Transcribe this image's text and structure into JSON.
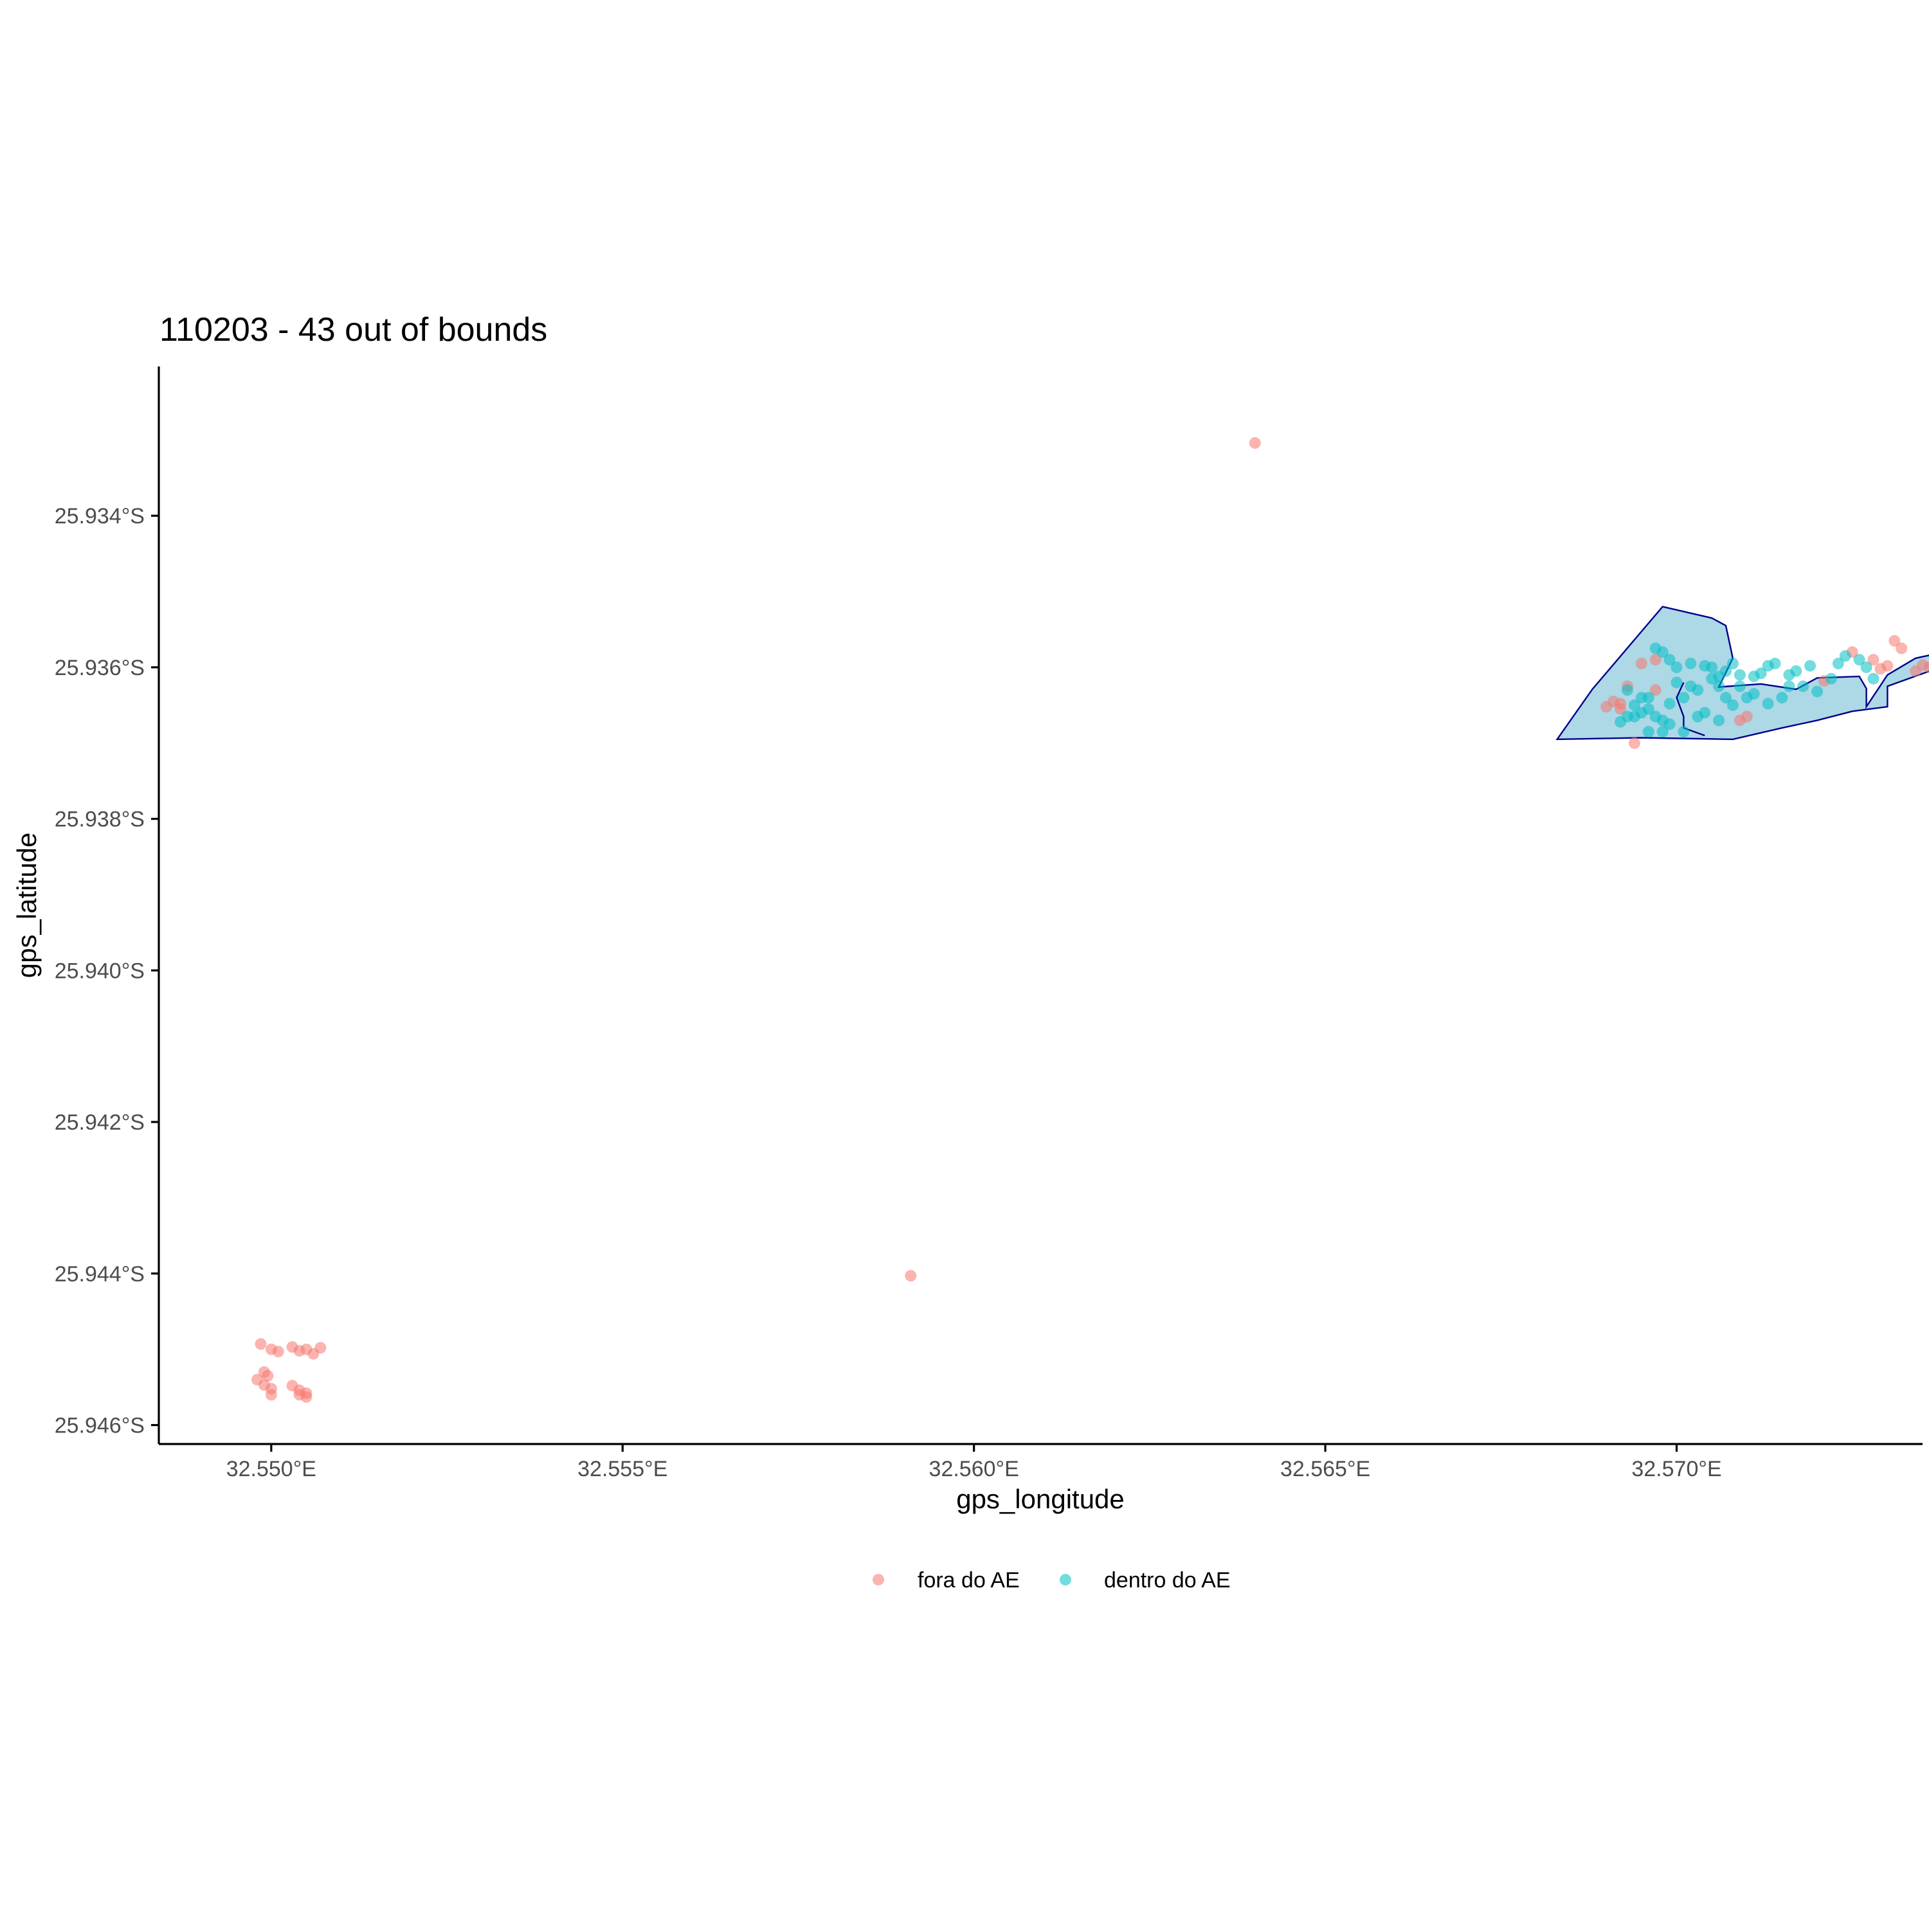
{
  "chart_data": {
    "type": "scatter",
    "title": "110203 - 43 out of bounds",
    "xlabel": "gps_longitude",
    "ylabel": "gps_latitude",
    "xlim": [
      32.5484,
      32.5735
    ],
    "ylim": [
      -25.94625,
      -25.93203
    ],
    "x_ticks": [
      {
        "value": 32.55,
        "label": "32.550°E"
      },
      {
        "value": 32.555,
        "label": "32.555°E"
      },
      {
        "value": 32.56,
        "label": "32.560°E"
      },
      {
        "value": 32.565,
        "label": "32.565°E"
      },
      {
        "value": 32.57,
        "label": "32.570°E"
      }
    ],
    "y_ticks": [
      {
        "value": -25.934,
        "label": "25.934°S"
      },
      {
        "value": -25.936,
        "label": "25.936°S"
      },
      {
        "value": -25.938,
        "label": "25.938°S"
      },
      {
        "value": -25.94,
        "label": "25.940°S"
      },
      {
        "value": -25.942,
        "label": "25.942°S"
      },
      {
        "value": -25.944,
        "label": "25.944°S"
      },
      {
        "value": -25.946,
        "label": "25.946°S"
      }
    ],
    "grid": false,
    "legend_position": "bottom",
    "polygon": {
      "fill": "#add8e6",
      "stroke": "#00008b",
      "outer": [
        [
          32.5683,
          -25.93695
        ],
        [
          32.5688,
          -25.93629
        ],
        [
          32.5698,
          -25.9352
        ],
        [
          32.5705,
          -25.93535
        ],
        [
          32.5707,
          -25.93545
        ],
        [
          32.5708,
          -25.93588
        ],
        [
          32.5706,
          -25.93626
        ],
        [
          32.5712,
          -25.93622
        ],
        [
          32.5717,
          -25.93629
        ],
        [
          32.572,
          -25.93614
        ],
        [
          32.5726,
          -25.93612
        ],
        [
          32.5727,
          -25.93628
        ],
        [
          32.5727,
          -25.93652
        ],
        [
          32.573,
          -25.9361
        ],
        [
          32.5734,
          -25.93588
        ],
        [
          32.5742,
          -25.93572
        ],
        [
          32.5743,
          -25.9358
        ],
        [
          32.5736,
          -25.93605
        ],
        [
          32.573,
          -25.93625
        ],
        [
          32.573,
          -25.93652
        ],
        [
          32.5725,
          -25.93658
        ],
        [
          32.572,
          -25.9367
        ],
        [
          32.5715,
          -25.9368
        ],
        [
          32.5708,
          -25.93695
        ],
        [
          32.5695,
          -25.93693
        ]
      ],
      "inner_boundary": [
        [
          32.5701,
          -25.9362
        ],
        [
          32.57,
          -25.9364
        ],
        [
          32.5701,
          -25.93665
        ],
        [
          32.5701,
          -25.9368
        ],
        [
          32.5704,
          -25.9369
        ]
      ]
    },
    "series": [
      {
        "name": "fora do AE",
        "color": "#f8766d",
        "points": [
          [
            32.564,
            -25.93304
          ],
          [
            32.5591,
            -25.94403
          ],
          [
            32.54985,
            -25.94493
          ],
          [
            32.55,
            -25.945
          ],
          [
            32.5501,
            -25.94503
          ],
          [
            32.5503,
            -25.94497
          ],
          [
            32.5504,
            -25.94502
          ],
          [
            32.5505,
            -25.945
          ],
          [
            32.5506,
            -25.94506
          ],
          [
            32.5507,
            -25.94498
          ],
          [
            32.5499,
            -25.9453
          ],
          [
            32.54995,
            -25.94535
          ],
          [
            32.5498,
            -25.9454
          ],
          [
            32.5499,
            -25.94547
          ],
          [
            32.55,
            -25.94552
          ],
          [
            32.55,
            -25.9456
          ],
          [
            32.5503,
            -25.94548
          ],
          [
            32.5504,
            -25.94554
          ],
          [
            32.5504,
            -25.9456
          ],
          [
            32.5505,
            -25.94558
          ],
          [
            32.5505,
            -25.94563
          ],
          [
            32.5695,
            -25.93595
          ],
          [
            32.5693,
            -25.93625
          ],
          [
            32.5691,
            -25.93645
          ],
          [
            32.5692,
            -25.93655
          ],
          [
            32.5694,
            -25.937
          ],
          [
            32.5709,
            -25.9367
          ],
          [
            32.5721,
            -25.93618
          ],
          [
            32.5725,
            -25.9358
          ],
          [
            32.5728,
            -25.9359
          ],
          [
            32.573,
            -25.93598
          ],
          [
            32.5734,
            -25.93605
          ],
          [
            32.5736,
            -25.936
          ],
          [
            32.5737,
            -25.93605
          ],
          [
            32.5731,
            -25.93565
          ],
          [
            32.5732,
            -25.93575
          ],
          [
            32.5697,
            -25.9359
          ],
          [
            32.5697,
            -25.9363
          ],
          [
            32.571,
            -25.93665
          ],
          [
            32.5692,
            -25.93648
          ],
          [
            32.569,
            -25.93652
          ],
          [
            32.5729,
            -25.93602
          ],
          [
            32.5735,
            -25.93597
          ]
        ]
      },
      {
        "name": "dentro do AE",
        "color": "#00bfc4",
        "points": [
          [
            32.5697,
            -25.93575
          ],
          [
            32.5698,
            -25.9358
          ],
          [
            32.5699,
            -25.9359
          ],
          [
            32.57,
            -25.936
          ],
          [
            32.5702,
            -25.93595
          ],
          [
            32.5704,
            -25.93598
          ],
          [
            32.5705,
            -25.936
          ],
          [
            32.5707,
            -25.93605
          ],
          [
            32.5708,
            -25.93595
          ],
          [
            32.5709,
            -25.9361
          ],
          [
            32.5711,
            -25.93612
          ],
          [
            32.5712,
            -25.93608
          ],
          [
            32.5713,
            -25.93598
          ],
          [
            32.5714,
            -25.93595
          ],
          [
            32.5716,
            -25.9361
          ],
          [
            32.5718,
            -25.93625
          ],
          [
            32.572,
            -25.93632
          ],
          [
            32.5722,
            -25.93615
          ],
          [
            32.5723,
            -25.93595
          ],
          [
            32.5724,
            -25.93585
          ],
          [
            32.5726,
            -25.9359
          ],
          [
            32.5727,
            -25.936
          ],
          [
            32.5728,
            -25.93615
          ],
          [
            32.57,
            -25.9362
          ],
          [
            32.5702,
            -25.93625
          ],
          [
            32.5703,
            -25.9363
          ],
          [
            32.5705,
            -25.93615
          ],
          [
            32.5706,
            -25.93625
          ],
          [
            32.5707,
            -25.9364
          ],
          [
            32.5708,
            -25.9365
          ],
          [
            32.571,
            -25.9364
          ],
          [
            32.5711,
            -25.93635
          ],
          [
            32.5696,
            -25.9364
          ],
          [
            32.5695,
            -25.9366
          ],
          [
            32.5694,
            -25.93665
          ],
          [
            32.5697,
            -25.93665
          ],
          [
            32.5698,
            -25.9367
          ],
          [
            32.5699,
            -25.93675
          ],
          [
            32.5701,
            -25.93685
          ],
          [
            32.5703,
            -25.93665
          ],
          [
            32.5704,
            -25.9366
          ],
          [
            32.5706,
            -25.9367
          ],
          [
            32.5693,
            -25.93665
          ],
          [
            32.5692,
            -25.93672
          ],
          [
            32.5693,
            -25.9363
          ],
          [
            32.5695,
            -25.9364
          ],
          [
            32.5696,
            -25.93685
          ],
          [
            32.5699,
            -25.93648
          ],
          [
            32.5701,
            -25.9364
          ],
          [
            32.5713,
            -25.93648
          ],
          [
            32.5715,
            -25.9364
          ],
          [
            32.5716,
            -25.93625
          ],
          [
            32.5742,
            -25.93558
          ],
          [
            32.5717,
            -25.93605
          ],
          [
            32.5719,
            -25.93598
          ],
          [
            32.5698,
            -25.93685
          ],
          [
            32.5706,
            -25.93612
          ],
          [
            32.5709,
            -25.93625
          ],
          [
            32.5696,
            -25.93655
          ],
          [
            32.5694,
            -25.9365
          ]
        ]
      }
    ]
  }
}
